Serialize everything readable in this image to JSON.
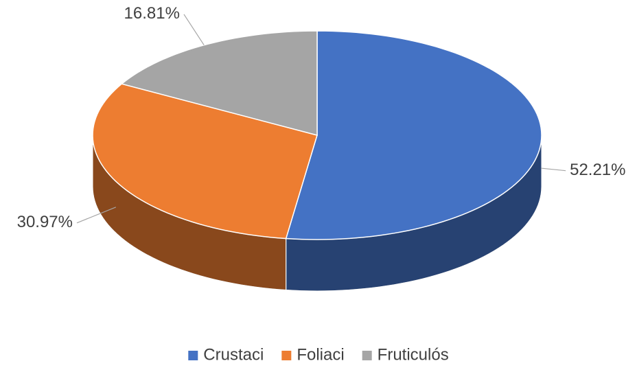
{
  "chart_data": {
    "type": "pie3d",
    "categories": [
      "Crustaci",
      "Foliaci",
      "Fruticulós"
    ],
    "values": [
      52.21,
      30.97,
      16.81
    ],
    "value_labels": [
      "52.21%",
      "30.97%",
      "16.81%"
    ],
    "colors": [
      "#4472c4",
      "#ed7d31",
      "#a5a5a5"
    ],
    "legend": "bottom"
  }
}
